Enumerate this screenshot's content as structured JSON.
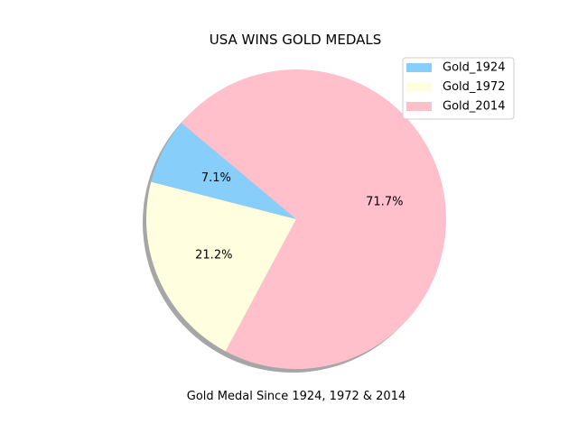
{
  "chart_data": {
    "type": "pie",
    "title": "USA WINS GOLD MEDALS",
    "xlabel": "Gold Medal Since 1924, 1972 & 2014",
    "categories": [
      "Gold_1924",
      "Gold_1972",
      "Gold_2014"
    ],
    "values": [
      7.1,
      21.2,
      71.7
    ],
    "value_labels": [
      "7.1%",
      "21.2%",
      "71.7%"
    ],
    "colors": [
      "#87cefa",
      "#ffffe0",
      "#ffc0cb"
    ],
    "start_angle": 140,
    "shadow": true,
    "legend_position": "upper right"
  }
}
